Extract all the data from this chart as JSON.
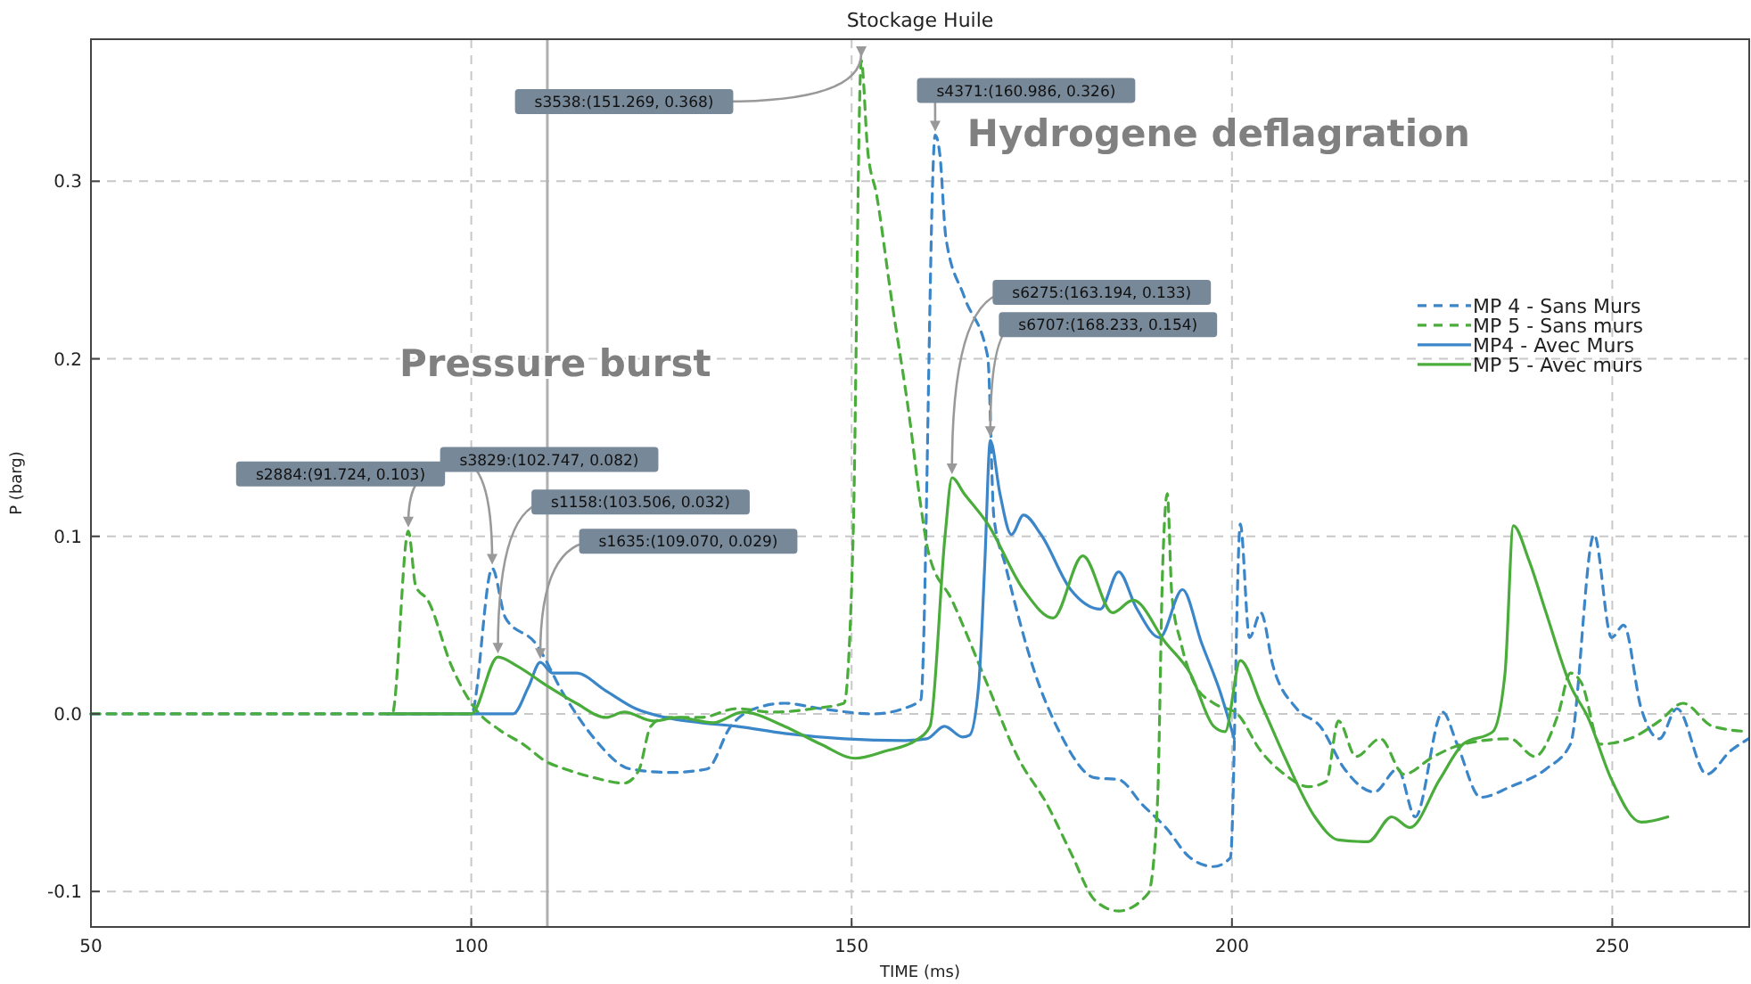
{
  "chart_data": {
    "type": "line",
    "title": "Stockage Huile",
    "xlabel": "TIME (ms)",
    "ylabel": "P (barg)",
    "xlim": [
      50,
      268
    ],
    "xticks": [
      50,
      100,
      150,
      200,
      250
    ],
    "ylim": [
      -0.12,
      0.38
    ],
    "yticks": [
      {
        "value": -0.1,
        "label": "-0.1"
      },
      {
        "value": 0,
        "label": "0.0"
      },
      {
        "value": 0.1,
        "label": "0.1"
      },
      {
        "value": 0.2,
        "label": "0.2"
      },
      {
        "value": 0.3,
        "label": "0.3"
      }
    ],
    "grid": true,
    "legend": "right",
    "marker": "none",
    "ref_lines": [
      {
        "axis": "x",
        "value": 110,
        "color": "#b0b0b0"
      }
    ],
    "annotations": [
      "Pressure burst",
      "Hydrogene deflagration",
      {
        "text": "s2884:(91.724, 0.103)",
        "x": 91.724,
        "y": 0.103
      },
      {
        "text": "s3829:(102.747, 0.082)",
        "x": 102.747,
        "y": 0.082
      },
      {
        "text": "s1158:(103.506, 0.032)",
        "x": 103.506,
        "y": 0.032
      },
      {
        "text": "s1635:(109.070, 0.029)",
        "x": 109.07,
        "y": 0.029
      },
      {
        "text": "s3538:(151.269, 0.368)",
        "x": 151.269,
        "y": 0.368
      },
      {
        "text": "s4371:(160.986, 0.326)",
        "x": 160.986,
        "y": 0.326
      },
      {
        "text": "s6275:(163.194, 0.133)",
        "x": 163.194,
        "y": 0.133
      },
      {
        "text": "s6707:(168.233, 0.154)",
        "x": 168.233,
        "y": 0.154
      }
    ],
    "series": [
      {
        "name": "MP 4 - Sans Murs",
        "color": "#3a86c8",
        "line_style": "dashed",
        "x": [
          50,
          100,
          102.747,
          104.5,
          108.4,
          112.3,
          116.2,
          120.9,
          126.3,
          131,
          134.1,
          137.3,
          141.2,
          145.9,
          152.9,
          156.8,
          159.1,
          160.986,
          161.6,
          162.4,
          164.8,
          167.9,
          168.7,
          170.2,
          174.1,
          177.3,
          182,
          185.1,
          188.2,
          191.3,
          194.5,
          197.6,
          199.8,
          201.1,
          202.3,
          203.8,
          205.4,
          208.5,
          211.6,
          214.8,
          218.7,
          221.8,
          224.1,
          227.7,
          229.6,
          232.7,
          236.6,
          241.3,
          244.5,
          247.6,
          249.9,
          251.5,
          253.8,
          256.2,
          258.5,
          262.4,
          265.5,
          267.9
        ],
        "values": [
          0,
          0,
          0.082,
          0.054,
          0.04,
          0.01,
          -0.014,
          -0.031,
          -0.033,
          -0.031,
          -0.007,
          0.003,
          0.006,
          0.003,
          0,
          0.003,
          0.008,
          0.326,
          0.315,
          0.268,
          0.235,
          0.201,
          0.111,
          0.084,
          0.023,
          -0.01,
          -0.036,
          -0.037,
          -0.051,
          -0.064,
          -0.081,
          -0.086,
          -0.081,
          0.107,
          0.043,
          0.057,
          0.027,
          0.003,
          -0.007,
          -0.031,
          -0.044,
          -0.031,
          -0.058,
          0.001,
          -0.017,
          -0.047,
          -0.041,
          -0.031,
          -0.017,
          0.101,
          0.043,
          0.05,
          0.003,
          -0.014,
          0.003,
          -0.034,
          -0.021,
          -0.014
        ]
      },
      {
        "name": "MP 5 - Sans murs",
        "color": "#4aac3a",
        "line_style": "dashed",
        "x": [
          50,
          89.6,
          91.724,
          92.7,
          94.3,
          97.4,
          100.5,
          103.7,
          106.8,
          109.9,
          112.3,
          116.2,
          120.1,
          122,
          123.6,
          125.5,
          130.2,
          134.9,
          139.6,
          145,
          149,
          150.2,
          151.269,
          152.1,
          153.3,
          155.2,
          157.6,
          159.1,
          160.1,
          163.2,
          167.9,
          171.8,
          175.7,
          178.8,
          182,
          185.1,
          189,
          190.2,
          190.9,
          191.5,
          192.1,
          193.3,
          195.2,
          197.6,
          200.7,
          203.8,
          206.9,
          210.1,
          212.4,
          214,
          216.3,
          219.5,
          222.6,
          226.5,
          230.4,
          236.6,
          239.8,
          242.9,
          244.5,
          246,
          248.4,
          252.3,
          256.2,
          259.3,
          263.2,
          267.9
        ],
        "values": [
          0,
          0,
          0.103,
          0.072,
          0.064,
          0.027,
          0.003,
          -0.009,
          -0.017,
          -0.027,
          -0.031,
          -0.036,
          -0.039,
          -0.032,
          -0.007,
          -0.002,
          -0.002,
          0.003,
          0.001,
          0.003,
          0.006,
          0.1,
          0.368,
          0.318,
          0.292,
          0.235,
          0.167,
          0.117,
          0.091,
          0.064,
          0.016,
          -0.024,
          -0.051,
          -0.078,
          -0.105,
          -0.111,
          -0.101,
          -0.051,
          0.084,
          0.124,
          0.067,
          0.04,
          0.016,
          0.006,
          0,
          -0.021,
          -0.034,
          -0.041,
          -0.038,
          -0.004,
          -0.024,
          -0.014,
          -0.034,
          -0.024,
          -0.017,
          -0.014,
          -0.024,
          0,
          0.023,
          0.017,
          -0.017,
          -0.014,
          -0.004,
          0.006,
          -0.007,
          -0.01
        ]
      },
      {
        "name": "MP4 - Avec Murs",
        "color": "#3a86c8",
        "line_style": "solid",
        "x": [
          89,
          105.5,
          107.5,
          109.07,
          110.7,
          113.8,
          117.7,
          121.6,
          125.5,
          130.2,
          134.9,
          141.2,
          149,
          156.8,
          159.9,
          162.2,
          164.6,
          165.5,
          166.7,
          167.5,
          168.233,
          169.5,
          171,
          172.6,
          174.9,
          178.8,
          182.7,
          185.1,
          187.4,
          190.5,
          193.5,
          196,
          198.4,
          200.3
        ],
        "values": [
          0,
          0,
          0.015,
          0.029,
          0.023,
          0.023,
          0.013,
          0.003,
          -0.002,
          -0.005,
          -0.007,
          -0.011,
          -0.014,
          -0.015,
          -0.014,
          -0.007,
          -0.013,
          -0.012,
          0.016,
          0.084,
          0.154,
          0.124,
          0.101,
          0.112,
          0.101,
          0.07,
          0.059,
          0.08,
          0.06,
          0.043,
          0.07,
          0.04,
          0.013,
          -0.014
        ]
      },
      {
        "name": "MP 5 - Avec murs",
        "color": "#4aac3a",
        "line_style": "solid",
        "x": [
          89,
          100,
          103.506,
          106,
          109.9,
          113.8,
          117.7,
          120.1,
          124,
          127.1,
          131.8,
          135.7,
          141.2,
          145.9,
          150.5,
          154.4,
          158.4,
          160.3,
          162.3,
          163.194,
          164.8,
          167.9,
          172.6,
          176.5,
          180.4,
          184.3,
          187,
          191.3,
          194.5,
          197.6,
          199.1,
          201.1,
          203.8,
          206.9,
          210.9,
          214,
          217.9,
          221,
          223.4,
          227.3,
          230.4,
          234.3,
          235.9,
          237,
          239,
          241.3,
          244.5,
          246.8,
          249.9,
          253.8,
          257.3
        ],
        "values": [
          0,
          0,
          0.032,
          0.027,
          0.016,
          0.006,
          -0.002,
          0.001,
          -0.004,
          -0.002,
          -0.005,
          0.001,
          -0.007,
          -0.017,
          -0.025,
          -0.021,
          -0.015,
          -0.007,
          0.101,
          0.133,
          0.124,
          0.107,
          0.07,
          0.054,
          0.089,
          0.057,
          0.064,
          0.04,
          0.023,
          -0.007,
          -0.01,
          0.03,
          0.006,
          -0.024,
          -0.058,
          -0.071,
          -0.072,
          -0.058,
          -0.064,
          -0.037,
          -0.017,
          -0.01,
          0.023,
          0.106,
          0.087,
          0.057,
          0.016,
          -0.002,
          -0.037,
          -0.061,
          -0.058
        ]
      }
    ]
  }
}
